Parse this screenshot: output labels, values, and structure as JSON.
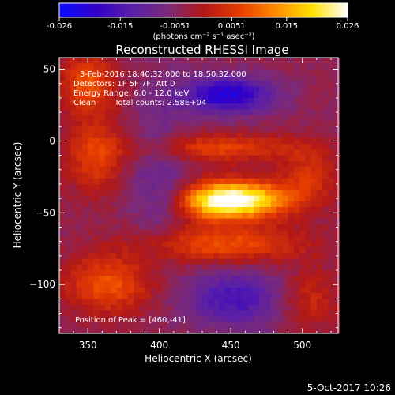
{
  "chart_data": {
    "type": "heatmap",
    "title": "Reconstructed RHESSI Image",
    "xlabel": "Heliocentric X (arcsec)",
    "ylabel": "Heliocentric Y (arcsec)",
    "xlim": [
      330,
      525
    ],
    "ylim": [
      -134,
      58
    ],
    "x_ticks": [
      350,
      400,
      450,
      500
    ],
    "y_ticks": [
      50,
      0,
      -50,
      -100
    ],
    "colorbar": {
      "ticks": [
        "-0.026",
        "-0.015",
        "-0.0051",
        "0.0051",
        "0.015",
        "0.026"
      ],
      "tick_values": [
        -0.026,
        -0.015,
        -0.0051,
        0.0051,
        0.015,
        0.026
      ],
      "range": [
        -0.026,
        0.026
      ],
      "unit_label": "(photons cm⁻² s⁻¹ asec⁻²)",
      "colormap": [
        "#0a0aff",
        "#3000c8",
        "#5a1fa8",
        "#7a2a7a",
        "#b01818",
        "#e63c00",
        "#ff8a00",
        "#ffe000",
        "#ffffff"
      ]
    },
    "annotations": [
      "3-Feb-2016 18:40:32.000 to 18:50:32.000",
      "Detectors: 1F 5F 7F, Att 0",
      "Energy Range: 6.0 - 12.0 keV",
      "Clean",
      "Total counts: 2.58E+04"
    ],
    "peak_label": "Position of Peak = [460,-41]",
    "peak": [
      460,
      -41
    ],
    "max_pixel": [
      460,
      -41,
      0.026
    ],
    "features": [
      {
        "x": 460,
        "y": -41,
        "sx": 22,
        "sy": 9,
        "amp": 0.026
      },
      {
        "x": 435,
        "y": -42,
        "sx": 16,
        "sy": 9,
        "amp": 0.014
      },
      {
        "x": 440,
        "y": -5,
        "sx": 40,
        "sy": 7,
        "amp": 0.01
      },
      {
        "x": 445,
        "y": -72,
        "sx": 40,
        "sy": 9,
        "amp": 0.012
      },
      {
        "x": 350,
        "y": 40,
        "sx": 14,
        "sy": 14,
        "amp": 0.012
      },
      {
        "x": 355,
        "y": -10,
        "sx": 14,
        "sy": 18,
        "amp": 0.01
      },
      {
        "x": 365,
        "y": -100,
        "sx": 22,
        "sy": 14,
        "amp": 0.012
      },
      {
        "x": 505,
        "y": -25,
        "sx": 14,
        "sy": 14,
        "amp": 0.008
      },
      {
        "x": 505,
        "y": -110,
        "sx": 14,
        "sy": 14,
        "amp": 0.007
      },
      {
        "x": 448,
        "y": 32,
        "sx": 22,
        "sy": 9,
        "amp": -0.018
      },
      {
        "x": 452,
        "y": -110,
        "sx": 24,
        "sy": 14,
        "amp": -0.012
      },
      {
        "x": 400,
        "y": -20,
        "sx": 14,
        "sy": 40,
        "amp": -0.006
      }
    ]
  },
  "footer_date": "5-Oct-2017 10:26"
}
